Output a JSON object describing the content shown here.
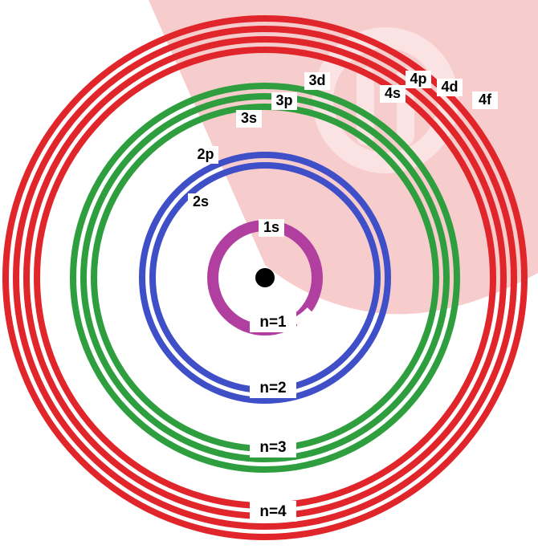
{
  "diagram": {
    "colors": {
      "watermark": "#f7c9c9",
      "n1": "#b03fa0",
      "n2": "#3e4fc8",
      "n3": "#2e9e3e",
      "n4": "#e0262b",
      "nucleus": "#000000"
    },
    "watermark_icon": "watermark-logo-icon",
    "nucleus_icon": "nucleus-dot-icon",
    "shells": [
      {
        "label": "n=1",
        "color_key": "n1",
        "subshells": [
          "1s"
        ]
      },
      {
        "label": "n=2",
        "color_key": "n2",
        "subshells": [
          "2s",
          "2p"
        ]
      },
      {
        "label": "n=3",
        "color_key": "n3",
        "subshells": [
          "3s",
          "3p",
          "3d"
        ]
      },
      {
        "label": "n=4",
        "color_key": "n4",
        "subshells": [
          "4s",
          "4p",
          "4d",
          "4f"
        ]
      }
    ]
  }
}
